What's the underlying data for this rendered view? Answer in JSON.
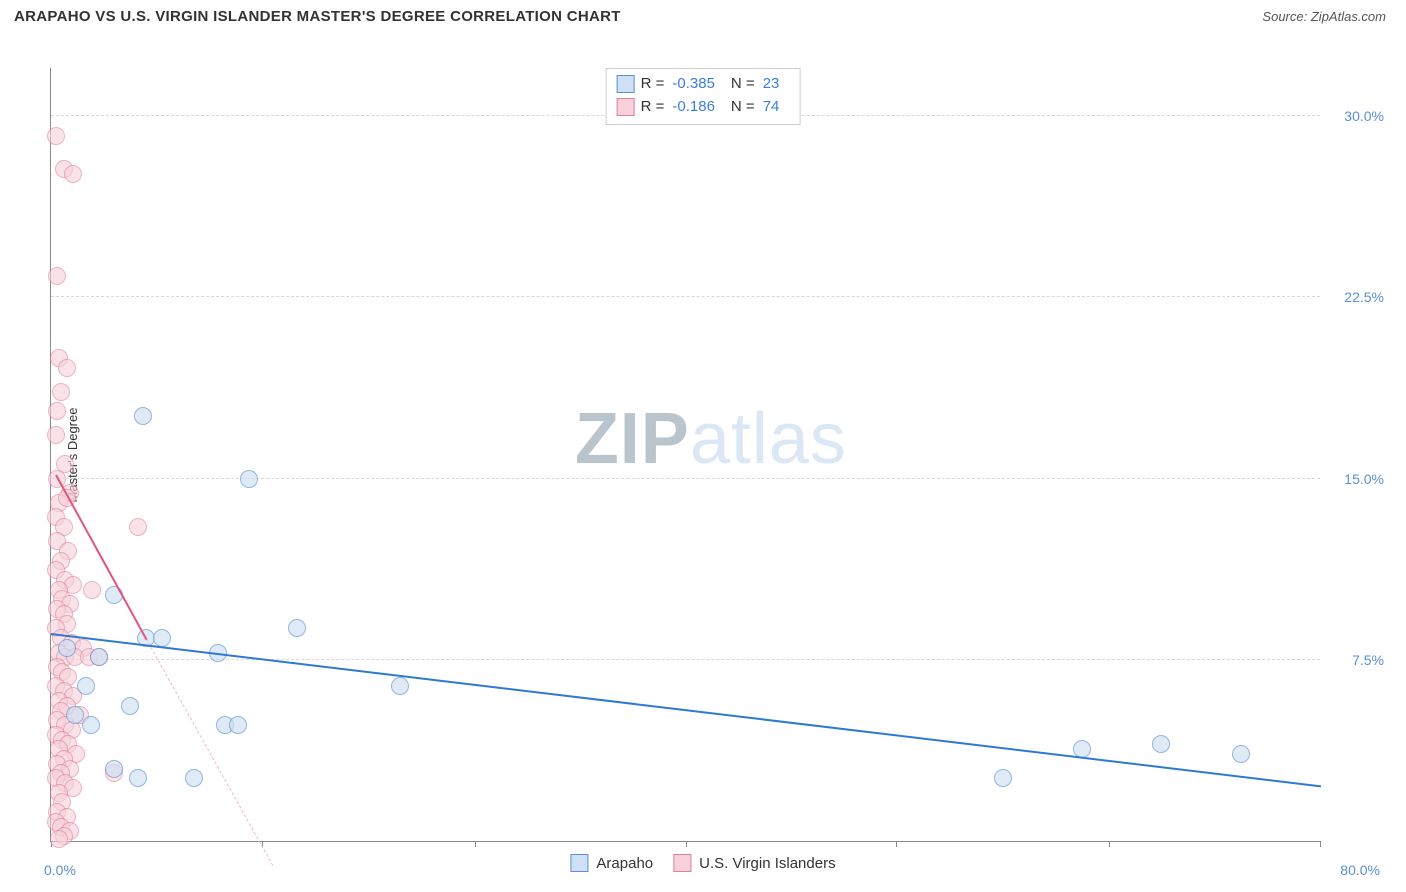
{
  "header": {
    "title": "ARAPAHO VS U.S. VIRGIN ISLANDER MASTER'S DEGREE CORRELATION CHART",
    "source_label": "Source:",
    "source_name": "ZipAtlas.com"
  },
  "watermark": {
    "part1": "ZIP",
    "part2": "atlas"
  },
  "chart": {
    "type": "scatter",
    "y_axis_label": "Master's Degree",
    "xlim": [
      0,
      80
    ],
    "ylim": [
      0,
      32
    ],
    "x_origin_label": "0.0%",
    "x_max_label": "80.0%",
    "y_ticks": [
      {
        "v": 7.5,
        "label": "7.5%"
      },
      {
        "v": 15.0,
        "label": "15.0%"
      },
      {
        "v": 22.5,
        "label": "22.5%"
      },
      {
        "v": 30.0,
        "label": "30.0%"
      }
    ],
    "x_tick_positions": [
      0,
      13.3,
      26.7,
      40,
      53.3,
      66.7,
      80
    ],
    "grid_color": "#d8d8d8",
    "axis_color": "#888888",
    "background_color": "#ffffff",
    "marker_radius": 9,
    "marker_stroke_width": 1.2,
    "series": [
      {
        "key": "arapaho",
        "label": "Arapaho",
        "fill": "#cfe0f4",
        "stroke": "#5a8fd0",
        "fill_opacity": 0.65,
        "r_value": "-0.385",
        "n_value": "23",
        "trend": {
          "x1": 0,
          "y1": 8.6,
          "x2": 80,
          "y2": 2.3,
          "color": "#2f79d0",
          "style": "solid",
          "width": 2.5
        },
        "points": [
          {
            "x": 5.8,
            "y": 17.6
          },
          {
            "x": 12.5,
            "y": 15.0
          },
          {
            "x": 4.0,
            "y": 10.2
          },
          {
            "x": 6.0,
            "y": 8.4
          },
          {
            "x": 7.0,
            "y": 8.4
          },
          {
            "x": 15.5,
            "y": 8.8
          },
          {
            "x": 10.5,
            "y": 7.8
          },
          {
            "x": 2.2,
            "y": 6.4
          },
          {
            "x": 5.0,
            "y": 5.6
          },
          {
            "x": 11.0,
            "y": 4.8
          },
          {
            "x": 11.8,
            "y": 4.8
          },
          {
            "x": 22.0,
            "y": 6.4
          },
          {
            "x": 5.5,
            "y": 2.6
          },
          {
            "x": 9.0,
            "y": 2.6
          },
          {
            "x": 3.0,
            "y": 7.6
          },
          {
            "x": 65.0,
            "y": 3.8
          },
          {
            "x": 70.0,
            "y": 4.0
          },
          {
            "x": 75.0,
            "y": 3.6
          },
          {
            "x": 60.0,
            "y": 2.6
          },
          {
            "x": 1.0,
            "y": 8.0
          },
          {
            "x": 2.5,
            "y": 4.8
          },
          {
            "x": 4.0,
            "y": 3.0
          },
          {
            "x": 1.5,
            "y": 5.2
          }
        ]
      },
      {
        "key": "usvi",
        "label": "U.S. Virgin Islanders",
        "fill": "#f6d1da",
        "stroke": "#e37f9b",
        "fill_opacity": 0.6,
        "r_value": "-0.186",
        "n_value": "74",
        "trend_solid": {
          "x1": 0.3,
          "y1": 15.2,
          "x2": 6.0,
          "y2": 8.4,
          "color": "#e0567e",
          "style": "solid",
          "width": 2.5
        },
        "trend_dashed": {
          "x1": 6.0,
          "y1": 8.4,
          "x2": 14.0,
          "y2": -1.0,
          "color": "#f1b7c5",
          "style": "dashed",
          "width": 1.5
        },
        "points": [
          {
            "x": 0.3,
            "y": 29.2
          },
          {
            "x": 0.8,
            "y": 27.8
          },
          {
            "x": 1.4,
            "y": 27.6
          },
          {
            "x": 0.4,
            "y": 23.4
          },
          {
            "x": 0.5,
            "y": 20.0
          },
          {
            "x": 1.0,
            "y": 19.6
          },
          {
            "x": 0.6,
            "y": 18.6
          },
          {
            "x": 0.4,
            "y": 17.8
          },
          {
            "x": 0.3,
            "y": 16.8
          },
          {
            "x": 0.9,
            "y": 15.6
          },
          {
            "x": 0.4,
            "y": 15.0
          },
          {
            "x": 1.2,
            "y": 14.4
          },
          {
            "x": 0.5,
            "y": 14.0
          },
          {
            "x": 1.0,
            "y": 14.2
          },
          {
            "x": 0.3,
            "y": 13.4
          },
          {
            "x": 0.8,
            "y": 13.0
          },
          {
            "x": 5.5,
            "y": 13.0
          },
          {
            "x": 0.4,
            "y": 12.4
          },
          {
            "x": 1.1,
            "y": 12.0
          },
          {
            "x": 0.6,
            "y": 11.6
          },
          {
            "x": 0.3,
            "y": 11.2
          },
          {
            "x": 0.9,
            "y": 10.8
          },
          {
            "x": 1.4,
            "y": 10.6
          },
          {
            "x": 0.5,
            "y": 10.4
          },
          {
            "x": 2.6,
            "y": 10.4
          },
          {
            "x": 0.7,
            "y": 10.0
          },
          {
            "x": 1.2,
            "y": 9.8
          },
          {
            "x": 0.4,
            "y": 9.6
          },
          {
            "x": 0.8,
            "y": 9.4
          },
          {
            "x": 1.0,
            "y": 9.0
          },
          {
            "x": 0.3,
            "y": 8.8
          },
          {
            "x": 0.6,
            "y": 8.4
          },
          {
            "x": 1.3,
            "y": 8.2
          },
          {
            "x": 2.0,
            "y": 8.0
          },
          {
            "x": 0.5,
            "y": 7.8
          },
          {
            "x": 0.9,
            "y": 7.6
          },
          {
            "x": 1.5,
            "y": 7.6
          },
          {
            "x": 2.4,
            "y": 7.6
          },
          {
            "x": 3.0,
            "y": 7.6
          },
          {
            "x": 0.4,
            "y": 7.2
          },
          {
            "x": 0.7,
            "y": 7.0
          },
          {
            "x": 1.1,
            "y": 6.8
          },
          {
            "x": 0.3,
            "y": 6.4
          },
          {
            "x": 0.8,
            "y": 6.2
          },
          {
            "x": 1.4,
            "y": 6.0
          },
          {
            "x": 0.5,
            "y": 5.8
          },
          {
            "x": 1.0,
            "y": 5.6
          },
          {
            "x": 0.6,
            "y": 5.4
          },
          {
            "x": 1.8,
            "y": 5.2
          },
          {
            "x": 0.4,
            "y": 5.0
          },
          {
            "x": 0.9,
            "y": 4.8
          },
          {
            "x": 1.3,
            "y": 4.6
          },
          {
            "x": 0.3,
            "y": 4.4
          },
          {
            "x": 0.7,
            "y": 4.2
          },
          {
            "x": 1.1,
            "y": 4.0
          },
          {
            "x": 0.5,
            "y": 3.8
          },
          {
            "x": 1.6,
            "y": 3.6
          },
          {
            "x": 0.8,
            "y": 3.4
          },
          {
            "x": 0.4,
            "y": 3.2
          },
          {
            "x": 1.2,
            "y": 3.0
          },
          {
            "x": 0.6,
            "y": 2.8
          },
          {
            "x": 0.3,
            "y": 2.6
          },
          {
            "x": 0.9,
            "y": 2.4
          },
          {
            "x": 1.4,
            "y": 2.2
          },
          {
            "x": 0.5,
            "y": 2.0
          },
          {
            "x": 4.0,
            "y": 2.8
          },
          {
            "x": 0.7,
            "y": 1.6
          },
          {
            "x": 0.4,
            "y": 1.2
          },
          {
            "x": 1.0,
            "y": 1.0
          },
          {
            "x": 0.3,
            "y": 0.8
          },
          {
            "x": 0.6,
            "y": 0.6
          },
          {
            "x": 1.2,
            "y": 0.4
          },
          {
            "x": 0.8,
            "y": 0.2
          },
          {
            "x": 0.5,
            "y": 0.1
          }
        ]
      }
    ],
    "stats_legend": {
      "r_label": "R =",
      "n_label": "N ="
    },
    "bottom_legend_order": [
      "arapaho",
      "usvi"
    ]
  }
}
